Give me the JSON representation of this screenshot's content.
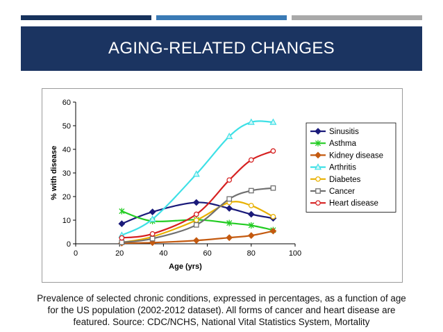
{
  "slide": {
    "title": "AGING-RELATED CHANGES",
    "caption": [
      "Prevalence of selected chronic conditions, expressed in percentages, as a function of age",
      "for the US population (2002-2012 dataset). All forms of cancer and heart disease are",
      "featured. Source: CDC/NCHS, National Vital Statistics System, Mortality"
    ],
    "colors": {
      "header": "#1b3461",
      "accent_bars": [
        "#17325c",
        "#3a7ab5",
        "#a9a9a9"
      ]
    }
  },
  "chart_data": {
    "type": "line",
    "title": "",
    "xlabel": "Age (yrs)",
    "ylabel": "% with disease",
    "xlim": [
      0,
      100
    ],
    "ylim": [
      0,
      60
    ],
    "xticks": [
      0,
      20,
      40,
      60,
      80,
      100
    ],
    "yticks": [
      0,
      10,
      20,
      30,
      40,
      50,
      60
    ],
    "grid": false,
    "legend_position": "right",
    "series": [
      {
        "name": "Sinusitis",
        "color": "#1a1a7a",
        "marker": "diamond",
        "x": [
          21,
          35,
          55,
          70,
          80,
          90
        ],
        "y": [
          8.5,
          13.5,
          17.5,
          15,
          12.5,
          10.8
        ]
      },
      {
        "name": "Asthma",
        "color": "#22cc22",
        "marker": "star",
        "x": [
          21,
          35,
          55,
          70,
          80,
          90
        ],
        "y": [
          13.8,
          9.6,
          10.2,
          8.8,
          7.8,
          5.8
        ]
      },
      {
        "name": "Kidney disease",
        "color": "#c45a10",
        "marker": "diamond",
        "x": [
          21,
          35,
          55,
          70,
          80,
          90
        ],
        "y": [
          0.3,
          0.5,
          1.4,
          2.6,
          3.5,
          5.4
        ]
      },
      {
        "name": "Arthritis",
        "color": "#3ee0e6",
        "marker": "triangle",
        "x": [
          21,
          35,
          55,
          70,
          80,
          90
        ],
        "y": [
          3.6,
          10.4,
          29.5,
          45.5,
          51.5,
          51.5
        ]
      },
      {
        "name": "Diabetes",
        "color": "#e8b000",
        "marker": "circle",
        "x": [
          21,
          35,
          55,
          70,
          80,
          90
        ],
        "y": [
          0.6,
          3.0,
          10.0,
          17.5,
          16.2,
          11.5
        ]
      },
      {
        "name": "Cancer",
        "color": "#707070",
        "marker": "square",
        "x": [
          21,
          35,
          55,
          70,
          80,
          90
        ],
        "y": [
          0.6,
          2.2,
          8.0,
          19.0,
          22.5,
          23.6
        ]
      },
      {
        "name": "Heart disease",
        "color": "#d62020",
        "marker": "circle",
        "x": [
          21,
          35,
          55,
          70,
          80,
          90
        ],
        "y": [
          2.5,
          4.2,
          12.5,
          27.0,
          35.5,
          39.3
        ]
      }
    ]
  }
}
